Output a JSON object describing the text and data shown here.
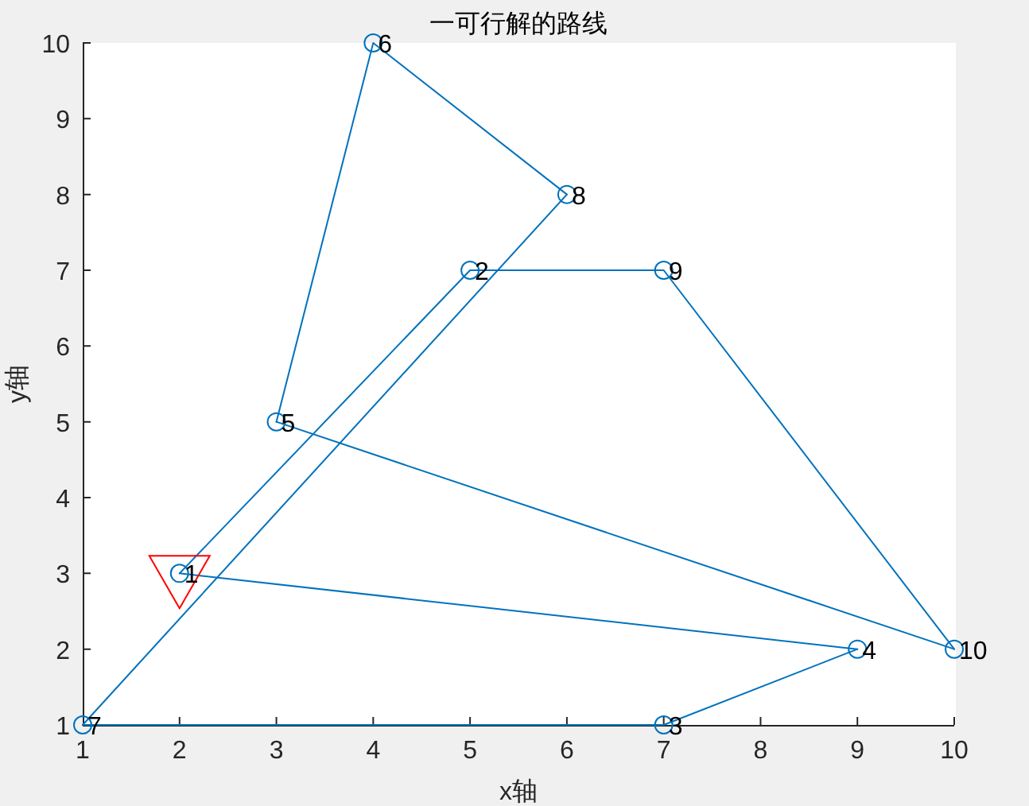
{
  "chart_data": {
    "type": "line",
    "title": "一可行解的路线",
    "xlabel": "x轴",
    "ylabel": "y轴",
    "xlim": [
      1,
      10
    ],
    "ylim": [
      1,
      10
    ],
    "xticks": [
      1,
      2,
      3,
      4,
      5,
      6,
      7,
      8,
      9,
      10
    ],
    "yticks": [
      1,
      2,
      3,
      4,
      5,
      6,
      7,
      8,
      9,
      10
    ],
    "series": [
      {
        "color": "#0072bd",
        "x": [
          2,
          9
        ],
        "values": [
          3,
          2
        ]
      },
      {
        "color": "#0072bd",
        "x": [
          9,
          7,
          1
        ],
        "values": [
          2,
          1,
          1
        ]
      },
      {
        "color": "#0072bd",
        "x": [
          1,
          6
        ],
        "values": [
          1,
          8
        ]
      },
      {
        "color": "#0072bd",
        "x": [
          6,
          4,
          3
        ],
        "values": [
          8,
          10,
          5
        ]
      },
      {
        "color": "#0072bd",
        "x": [
          3,
          10
        ],
        "values": [
          5,
          2
        ]
      },
      {
        "color": "#0072bd",
        "x": [
          10,
          7,
          5,
          2
        ],
        "values": [
          2,
          7,
          7,
          3
        ]
      },
      {
        "type": "scatter",
        "color": "#0072bd",
        "marker": "circle",
        "x": [
          2,
          5,
          7,
          9,
          3,
          4,
          1,
          6,
          7,
          10
        ],
        "values": [
          3,
          7,
          1,
          2,
          5,
          10,
          1,
          8,
          7,
          2
        ]
      },
      {
        "type": "scatter",
        "color": "#ff0000",
        "marker": "triangle",
        "x": [
          2
        ],
        "values": [
          3
        ]
      }
    ],
    "annotations": [
      {
        "text": "1",
        "x": 2,
        "y": 3
      },
      {
        "text": "2",
        "x": 5,
        "y": 7
      },
      {
        "text": "3",
        "x": 7,
        "y": 1
      },
      {
        "text": "4",
        "x": 9,
        "y": 2
      },
      {
        "text": "5",
        "x": 3,
        "y": 5
      },
      {
        "text": "6",
        "x": 4,
        "y": 10
      },
      {
        "text": "7",
        "x": 1,
        "y": 1
      },
      {
        "text": "8",
        "x": 6,
        "y": 8
      },
      {
        "text": "9",
        "x": 7,
        "y": 7
      },
      {
        "text": "10",
        "x": 10,
        "y": 2
      }
    ]
  }
}
